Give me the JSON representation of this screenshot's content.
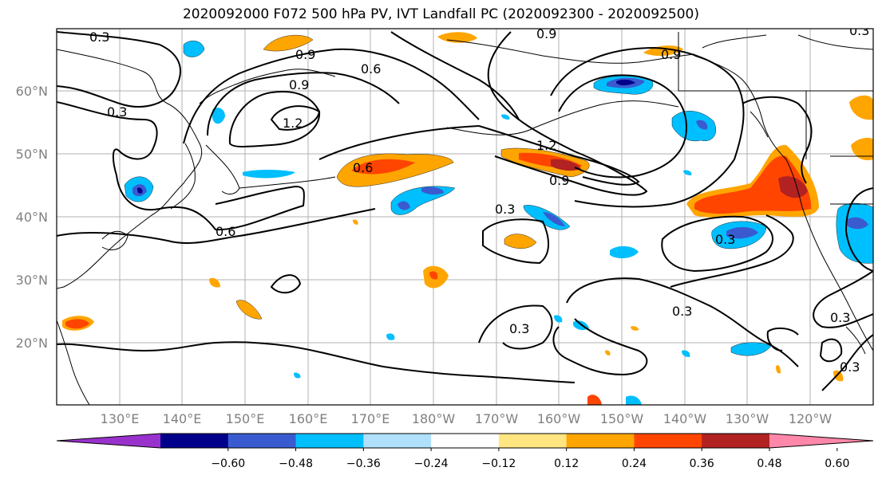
{
  "title": "2020092000 F072 500 hPa PV, IVT Landfall PC (2020092300 - 2020092500)",
  "lat_labels": [
    "60°N",
    "50°N",
    "40°N",
    "30°N",
    "20°N"
  ],
  "lon_labels": [
    "130°E",
    "140°E",
    "150°E",
    "160°E",
    "170°E",
    "180°W",
    "170°W",
    "160°W",
    "150°W",
    "140°W",
    "130°W",
    "120°W"
  ],
  "colorbar": {
    "ticks": [
      "−0.60",
      "−0.48",
      "−0.36",
      "−0.24",
      "−0.12",
      "0.12",
      "0.24",
      "0.36",
      "0.48",
      "0.60"
    ],
    "colors": [
      "#9932cc",
      "#00008b",
      "#3a5bd0",
      "#00bfff",
      "#b0e0fa",
      "#ffffff",
      "#ffe680",
      "#ffa500",
      "#ff4500",
      "#b22222",
      "#ff88aa"
    ]
  },
  "contour_labels": [
    "0.3",
    "0.9",
    "0.6",
    "0.9",
    "1.2",
    "0.3",
    "0.6",
    "0.6",
    "0.9",
    "0.3",
    "1.2",
    "0.9",
    "0.3",
    "0.9",
    "0.3",
    "0.3",
    "0.3",
    "0.3",
    "0.3"
  ]
}
